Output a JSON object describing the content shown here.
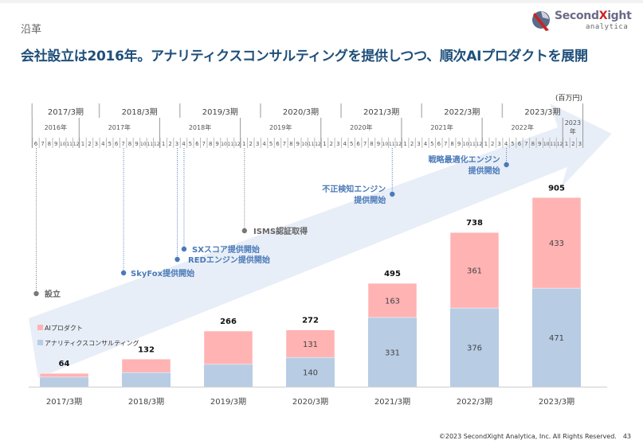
{
  "header": {
    "section": "沿革",
    "headline": "会社設立は2016年。アナリティクスコンサルティングを提供しつつ、順次AIプロダクトを展開",
    "logo_main": "Second",
    "logo_x": "X",
    "logo_tail": "ight",
    "logo_sub": "analytica"
  },
  "unit_label": "(百万円)",
  "timeline": {
    "fiscal_periods": [
      "2017/3期",
      "2018/3期",
      "2019/3期",
      "2020/3期",
      "2021/3期",
      "2022/3期",
      "2023/3期"
    ],
    "calendar_years": [
      "2016年",
      "2017年",
      "2018年",
      "2019年",
      "2020年",
      "2021年",
      "2022年",
      "2023年"
    ],
    "start_month": 6,
    "start_year": 2016,
    "end_month": 3,
    "end_year": 2023,
    "milestones": [
      {
        "label": "設立",
        "year": 2016,
        "month": 6,
        "color": "gray"
      },
      {
        "label": "SkyFox提供開始",
        "year": 2017,
        "month": 7,
        "color": "blue"
      },
      {
        "label": "REDエンジン提供開始",
        "year": 2018,
        "month": 3,
        "color": "blue"
      },
      {
        "label": "SXスコア提供開始",
        "year": 2018,
        "month": 4,
        "color": "blue"
      },
      {
        "label": "ISMS認証取得",
        "year": 2019,
        "month": 1,
        "color": "gray"
      },
      {
        "label": "不正検知エンジン\n提供開始",
        "year": 2020,
        "month": 11,
        "color": "blue"
      },
      {
        "label": "戦略最適化エンジン\n提供開始",
        "year": 2022,
        "month": 4,
        "color": "blue"
      }
    ]
  },
  "colors": {
    "ai": "#ffb3b3",
    "consulting": "#b8cce4",
    "arrow": "#e8eef7",
    "milestone_blue": "#4a7ab8",
    "milestone_gray": "#777777",
    "headline": "#1f4f7a"
  },
  "chart_data": {
    "type": "bar",
    "stacked": true,
    "title": "",
    "unit": "百万円",
    "categories": [
      "2017/3期",
      "2018/3期",
      "2019/3期",
      "2020/3期",
      "2021/3期",
      "2022/3期",
      "2023/3期"
    ],
    "series": [
      {
        "name": "アナリティクスコンサルティング",
        "values": [
          46,
          68,
          107,
          140,
          331,
          376,
          471
        ],
        "labels_shown": [
          false,
          false,
          false,
          true,
          true,
          true,
          true
        ]
      },
      {
        "name": "AIプロダクト",
        "values": [
          18,
          64,
          159,
          131,
          163,
          361,
          433
        ],
        "labels_shown": [
          false,
          false,
          false,
          true,
          true,
          true,
          true
        ]
      }
    ],
    "totals": [
      64,
      132,
      266,
      272,
      495,
      738,
      905
    ],
    "legend": [
      "AIプロダクト",
      "アナリティクスコンサルティング"
    ],
    "legend_position": "top-left",
    "ylim": [
      0,
      905
    ],
    "grid": false
  },
  "footer": {
    "copyright": "©2023 SecondXight Analytica, Inc. All Rights Reserved.",
    "page": "43"
  }
}
